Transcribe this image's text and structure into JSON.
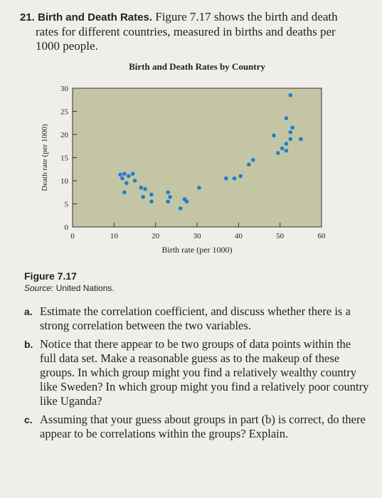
{
  "problem": {
    "number": "21.",
    "title": "Birth and Death Rates.",
    "line1": "Figure 7.17 shows the birth and death",
    "line2": "rates for different countries, measured in births and deaths per",
    "line3": "1000 people."
  },
  "chart_data": {
    "type": "scatter",
    "title": "Birth and Death Rates by Country",
    "xlabel": "Birth rate (per 1000)",
    "ylabel": "Death rate (per 1000)",
    "xlim": [
      0,
      60
    ],
    "ylim": [
      0,
      30
    ],
    "x_ticks": [
      "0",
      "10",
      "20",
      "30",
      "40",
      "50",
      "60"
    ],
    "y_ticks": [
      "0",
      "5",
      "10",
      "15",
      "20",
      "25",
      "30"
    ],
    "grid": false,
    "background_color": "#c3c5a4",
    "point_color": "#1f7fcf",
    "series": [
      {
        "points": [
          [
            11.5,
            11.3
          ],
          [
            12.5,
            11.5
          ],
          [
            12,
            10.5
          ],
          [
            13.5,
            11
          ],
          [
            14.5,
            11.5
          ],
          [
            13,
            9.5
          ],
          [
            15,
            10
          ],
          [
            12.5,
            7.5
          ],
          [
            16.5,
            8.5
          ],
          [
            17.5,
            8.2
          ],
          [
            17,
            6.5
          ],
          [
            19,
            7
          ],
          [
            19,
            5.5
          ],
          [
            23,
            7.5
          ],
          [
            23.5,
            6.5
          ],
          [
            23,
            5.5
          ],
          [
            27,
            6
          ],
          [
            27.5,
            5.5
          ],
          [
            26,
            4
          ],
          [
            30.5,
            8.5
          ],
          [
            37,
            10.5
          ],
          [
            39,
            10.5
          ],
          [
            40.5,
            11
          ],
          [
            42.5,
            13.5
          ],
          [
            43.5,
            14.5
          ],
          [
            49.5,
            16
          ],
          [
            51.5,
            16.5
          ],
          [
            50.5,
            17
          ],
          [
            48.5,
            19.8
          ],
          [
            51.5,
            18
          ],
          [
            52.5,
            19
          ],
          [
            52.5,
            20.5
          ],
          [
            53,
            21.5
          ],
          [
            51.5,
            23.5
          ],
          [
            55,
            19
          ],
          [
            52.5,
            28.5
          ]
        ]
      }
    ]
  },
  "caption": {
    "figure": "Figure 7.17",
    "source_label": "Source:",
    "source_text": "United Nations."
  },
  "parts": [
    {
      "label": "a.",
      "text": "Estimate the correlation coefficient, and discuss whether there is a strong correlation between the two variables."
    },
    {
      "label": "b.",
      "text": "Notice that there appear to be two groups of data points within the full data set. Make a reasonable guess as to the makeup of these groups. In which group might you find a relatively wealthy country like Sweden? In which group might you find a relatively poor country like Uganda?"
    },
    {
      "label": "c.",
      "text": "Assuming that your guess about groups in part (b) is correct, do there appear to be correlations within the groups? Explain."
    }
  ]
}
